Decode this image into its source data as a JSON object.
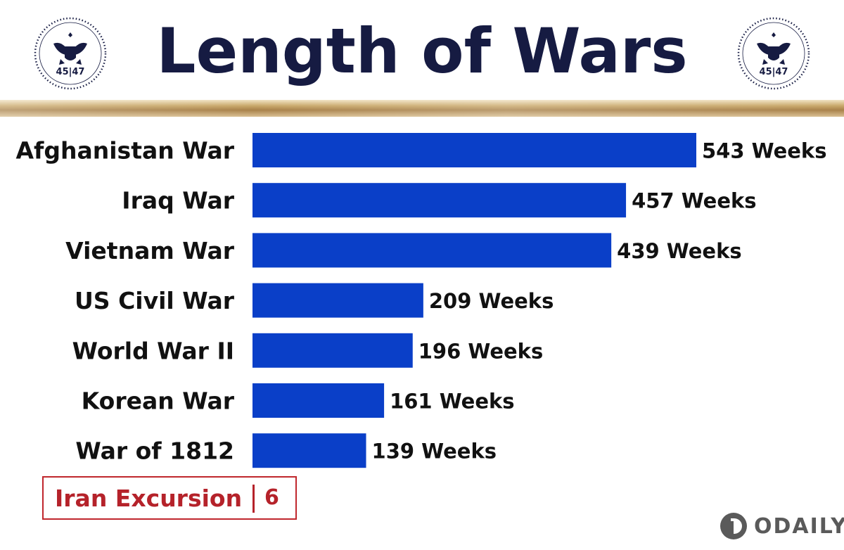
{
  "title": "Length of Wars",
  "seal_text": "45|47",
  "colors": {
    "title": "#161b42",
    "bar": "#0a3fc8",
    "label": "#111111",
    "highlight": "#b5222a",
    "gold": "#c9a86a"
  },
  "chart_data": {
    "type": "bar",
    "orientation": "horizontal",
    "title": "Length of Wars",
    "categories": [
      "Afghanistan War",
      "Iraq War",
      "Vietnam War",
      "US Civil War",
      "World War II",
      "Korean War",
      "War of 1812"
    ],
    "values": [
      543,
      457,
      439,
      209,
      196,
      161,
      139
    ],
    "value_labels": [
      "543 Weeks",
      "457 Weeks",
      "439 Weeks",
      "209 Weeks",
      "196 Weeks",
      "161 Weeks",
      "139 Weeks"
    ],
    "unit": "Weeks",
    "xlabel": "",
    "ylabel": "",
    "xlim": [
      0,
      543
    ],
    "grid": false,
    "legend": "none"
  },
  "callout": {
    "label": "Iran Excursion",
    "value": "6"
  },
  "brand": {
    "name": "ODAILY",
    "icon": "odaily-logo-icon"
  }
}
